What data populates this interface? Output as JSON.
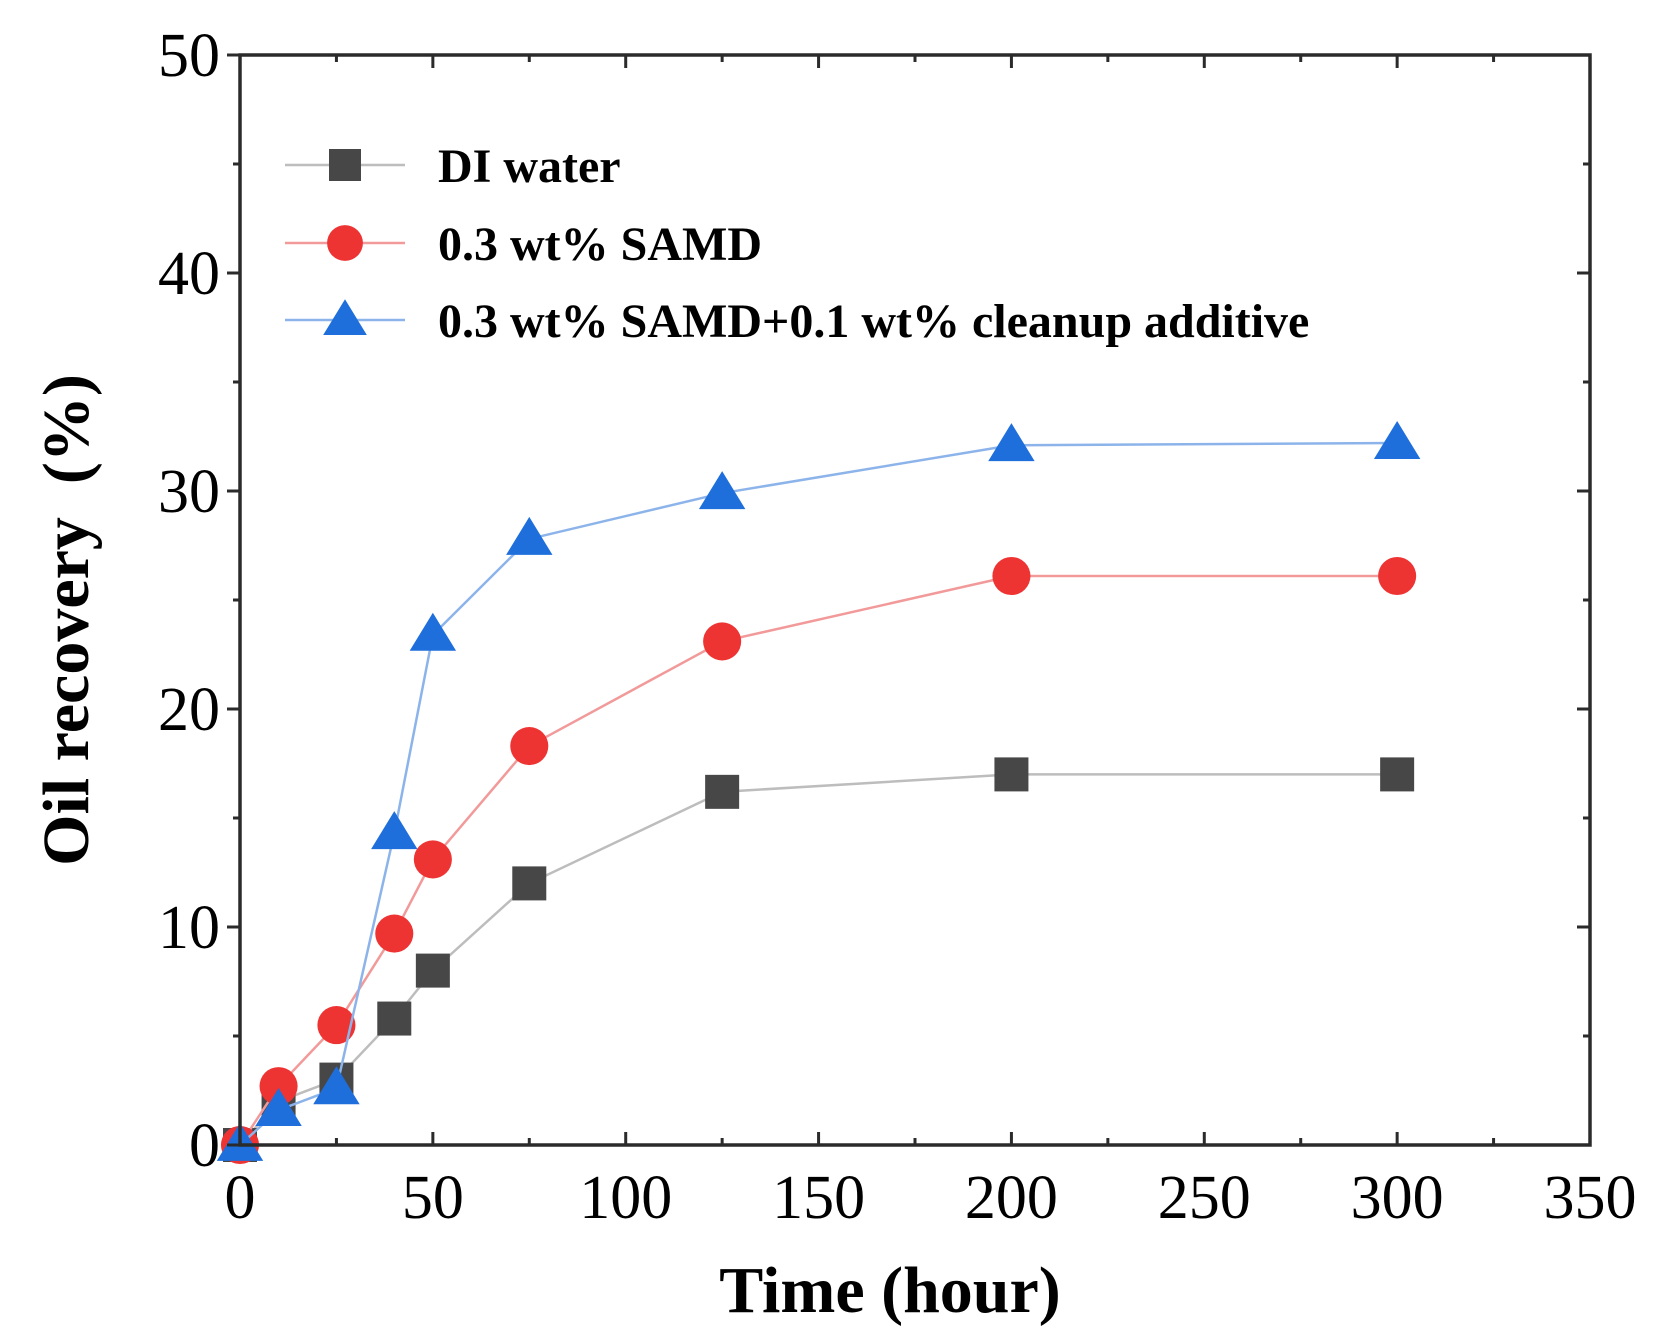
{
  "chart_data": {
    "type": "line",
    "title": "",
    "xlabel": "Time (hour)",
    "ylabel": "Oil recovery  (%)",
    "xlim": [
      0,
      350
    ],
    "ylim": [
      0,
      50
    ],
    "xticks": [
      0,
      50,
      100,
      150,
      200,
      250,
      300,
      350
    ],
    "yticks": [
      0,
      10,
      20,
      30,
      40,
      50
    ],
    "x_minor_step": 25,
    "y_minor_step": 5,
    "grid": false,
    "legend_position": "top-left",
    "series": [
      {
        "name": "DI water",
        "marker": "square",
        "color": "#474747",
        "line_color": "#bdbdbd",
        "x": [
          0,
          10,
          25,
          40,
          50,
          75,
          125,
          200,
          300
        ],
        "y": [
          0,
          2.0,
          3.0,
          5.8,
          8.0,
          12.0,
          16.2,
          17.0,
          17.0
        ]
      },
      {
        "name": "0.3 wt% SAMD",
        "marker": "circle",
        "color": "#ee3333",
        "line_color": "#f29a9a",
        "x": [
          0,
          10,
          25,
          40,
          50,
          75,
          125,
          200,
          300
        ],
        "y": [
          0,
          2.7,
          5.5,
          9.7,
          13.1,
          18.3,
          23.1,
          26.1,
          26.1
        ]
      },
      {
        "name": "0.3 wt% SAMD+0.1 wt% cleanup additive",
        "marker": "triangle",
        "color": "#1e6fdc",
        "line_color": "#8cb4ea",
        "x": [
          0,
          10,
          25,
          40,
          50,
          75,
          125,
          200,
          300
        ],
        "y": [
          0,
          1.6,
          2.6,
          14.3,
          23.4,
          27.8,
          29.9,
          32.1,
          32.2
        ]
      }
    ]
  }
}
